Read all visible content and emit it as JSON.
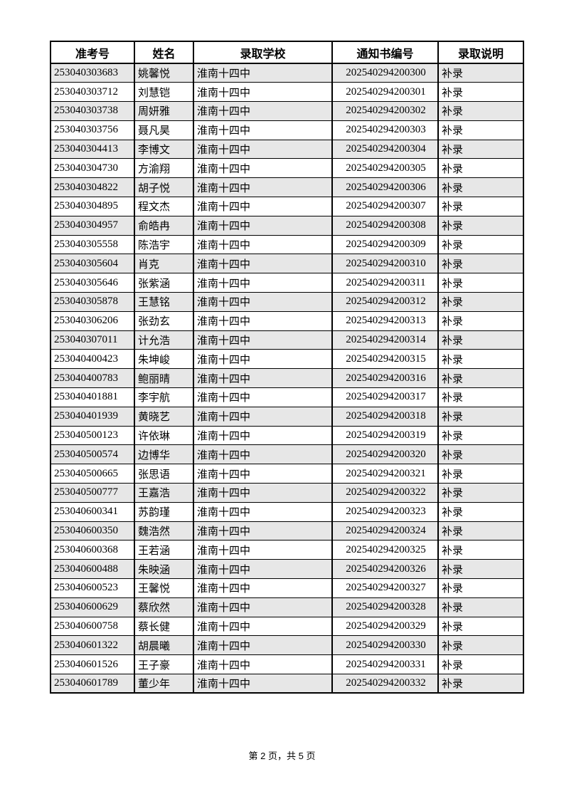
{
  "page": {
    "footer": "第 2 页，共 5 页"
  },
  "table": {
    "headers": [
      "准考号",
      "姓名",
      "录取学校",
      "通知书编号",
      "录取说明"
    ],
    "stripe_color": "#e7e7e7",
    "border_color": "#000000",
    "rows": [
      {
        "exam_no": "253040303683",
        "name": "姚馨悦",
        "school": "淮南十四中",
        "notice_no": "202540294200300",
        "note": "补录"
      },
      {
        "exam_no": "253040303712",
        "name": "刘慧铠",
        "school": "淮南十四中",
        "notice_no": "202540294200301",
        "note": "补录"
      },
      {
        "exam_no": "253040303738",
        "name": "周妍雅",
        "school": "淮南十四中",
        "notice_no": "202540294200302",
        "note": "补录"
      },
      {
        "exam_no": "253040303756",
        "name": "聂凡昊",
        "school": "淮南十四中",
        "notice_no": "202540294200303",
        "note": "补录"
      },
      {
        "exam_no": "253040304413",
        "name": "李博文",
        "school": "淮南十四中",
        "notice_no": "202540294200304",
        "note": "补录"
      },
      {
        "exam_no": "253040304730",
        "name": "方渝翔",
        "school": "淮南十四中",
        "notice_no": "202540294200305",
        "note": "补录"
      },
      {
        "exam_no": "253040304822",
        "name": "胡子悦",
        "school": "淮南十四中",
        "notice_no": "202540294200306",
        "note": "补录"
      },
      {
        "exam_no": "253040304895",
        "name": "程文杰",
        "school": "淮南十四中",
        "notice_no": "202540294200307",
        "note": "补录"
      },
      {
        "exam_no": "253040304957",
        "name": "俞皓冉",
        "school": "淮南十四中",
        "notice_no": "202540294200308",
        "note": "补录"
      },
      {
        "exam_no": "253040305558",
        "name": "陈浩宇",
        "school": "淮南十四中",
        "notice_no": "202540294200309",
        "note": "补录"
      },
      {
        "exam_no": "253040305604",
        "name": "肖克",
        "school": "淮南十四中",
        "notice_no": "202540294200310",
        "note": "补录"
      },
      {
        "exam_no": "253040305646",
        "name": "张紫涵",
        "school": "淮南十四中",
        "notice_no": "202540294200311",
        "note": "补录"
      },
      {
        "exam_no": "253040305878",
        "name": "王慧铭",
        "school": "淮南十四中",
        "notice_no": "202540294200312",
        "note": "补录"
      },
      {
        "exam_no": "253040306206",
        "name": "张劲玄",
        "school": "淮南十四中",
        "notice_no": "202540294200313",
        "note": "补录"
      },
      {
        "exam_no": "253040307011",
        "name": "计允浩",
        "school": "淮南十四中",
        "notice_no": "202540294200314",
        "note": "补录"
      },
      {
        "exam_no": "253040400423",
        "name": "朱坤峻",
        "school": "淮南十四中",
        "notice_no": "202540294200315",
        "note": "补录"
      },
      {
        "exam_no": "253040400783",
        "name": "鲍丽晴",
        "school": "淮南十四中",
        "notice_no": "202540294200316",
        "note": "补录"
      },
      {
        "exam_no": "253040401881",
        "name": "李宇航",
        "school": "淮南十四中",
        "notice_no": "202540294200317",
        "note": "补录"
      },
      {
        "exam_no": "253040401939",
        "name": "黄晓艺",
        "school": "淮南十四中",
        "notice_no": "202540294200318",
        "note": "补录"
      },
      {
        "exam_no": "253040500123",
        "name": "许依琳",
        "school": "淮南十四中",
        "notice_no": "202540294200319",
        "note": "补录"
      },
      {
        "exam_no": "253040500574",
        "name": "边博华",
        "school": "淮南十四中",
        "notice_no": "202540294200320",
        "note": "补录"
      },
      {
        "exam_no": "253040500665",
        "name": "张思语",
        "school": "淮南十四中",
        "notice_no": "202540294200321",
        "note": "补录"
      },
      {
        "exam_no": "253040500777",
        "name": "王嘉浩",
        "school": "淮南十四中",
        "notice_no": "202540294200322",
        "note": "补录"
      },
      {
        "exam_no": "253040600341",
        "name": "苏韵瑾",
        "school": "淮南十四中",
        "notice_no": "202540294200323",
        "note": "补录"
      },
      {
        "exam_no": "253040600350",
        "name": "魏浩然",
        "school": "淮南十四中",
        "notice_no": "202540294200324",
        "note": "补录"
      },
      {
        "exam_no": "253040600368",
        "name": "王若涵",
        "school": "淮南十四中",
        "notice_no": "202540294200325",
        "note": "补录"
      },
      {
        "exam_no": "253040600488",
        "name": "朱映涵",
        "school": "淮南十四中",
        "notice_no": "202540294200326",
        "note": "补录"
      },
      {
        "exam_no": "253040600523",
        "name": "王馨悦",
        "school": "淮南十四中",
        "notice_no": "202540294200327",
        "note": "补录"
      },
      {
        "exam_no": "253040600629",
        "name": "蔡欣然",
        "school": "淮南十四中",
        "notice_no": "202540294200328",
        "note": "补录"
      },
      {
        "exam_no": "253040600758",
        "name": "蔡长健",
        "school": "淮南十四中",
        "notice_no": "202540294200329",
        "note": "补录"
      },
      {
        "exam_no": "253040601322",
        "name": "胡晨曦",
        "school": "淮南十四中",
        "notice_no": "202540294200330",
        "note": "补录"
      },
      {
        "exam_no": "253040601526",
        "name": "王子豪",
        "school": "淮南十四中",
        "notice_no": "202540294200331",
        "note": "补录"
      },
      {
        "exam_no": "253040601789",
        "name": "董少年",
        "school": "淮南十四中",
        "notice_no": "202540294200332",
        "note": "补录"
      }
    ]
  }
}
